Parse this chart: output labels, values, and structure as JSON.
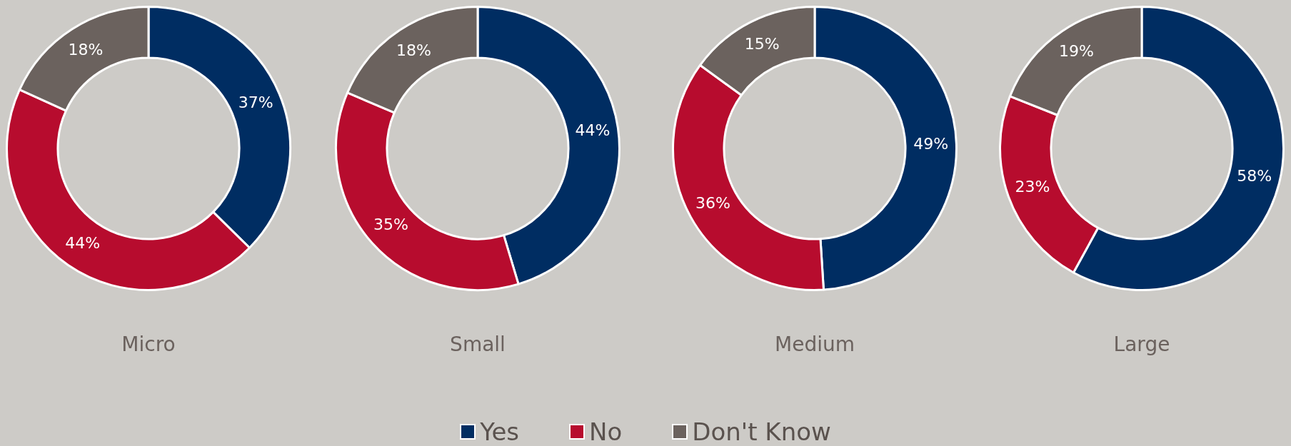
{
  "chart_data": [
    {
      "type": "donut",
      "title": "Micro",
      "categories": [
        "Yes",
        "No",
        "Don't Know"
      ],
      "values": [
        37,
        44,
        18
      ],
      "value_labels": [
        "37%",
        "44%",
        "18%"
      ],
      "colors": [
        "#002d62",
        "#b70c2e",
        "#6b625e"
      ],
      "legend": "bottom"
    },
    {
      "type": "donut",
      "title": "Small",
      "values": [
        44,
        35,
        18
      ],
      "value_labels": [
        "44%",
        "35%",
        "18%"
      ],
      "colors": [
        "#002d62",
        "#b70c2e",
        "#6b625e"
      ]
    },
    {
      "type": "donut",
      "title": "Medium",
      "values": [
        49,
        36,
        15
      ],
      "value_labels": [
        "49%",
        "36%",
        "15%"
      ],
      "colors": [
        "#002d62",
        "#b70c2e",
        "#6b625e"
      ]
    },
    {
      "type": "donut",
      "title": "Large",
      "values": [
        58,
        23,
        19
      ],
      "value_labels": [
        "58%",
        "23%",
        "19%"
      ],
      "colors": [
        "#002d62",
        "#b70c2e",
        "#6b625e"
      ]
    }
  ]
}
